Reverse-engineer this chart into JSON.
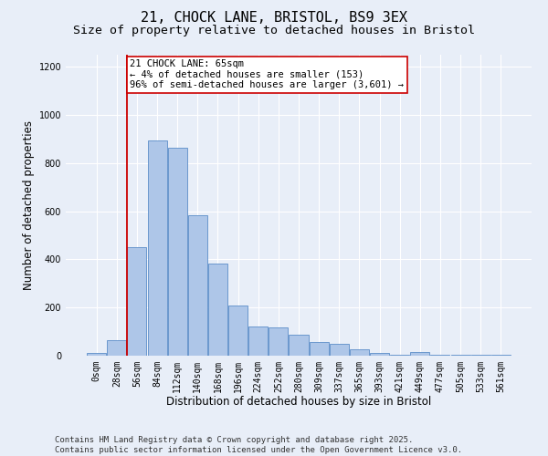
{
  "title_line1": "21, CHOCK LANE, BRISTOL, BS9 3EX",
  "title_line2": "Size of property relative to detached houses in Bristol",
  "xlabel": "Distribution of detached houses by size in Bristol",
  "ylabel": "Number of detached properties",
  "bin_labels": [
    "0sqm",
    "28sqm",
    "56sqm",
    "84sqm",
    "112sqm",
    "140sqm",
    "168sqm",
    "196sqm",
    "224sqm",
    "252sqm",
    "280sqm",
    "309sqm",
    "337sqm",
    "365sqm",
    "393sqm",
    "421sqm",
    "449sqm",
    "477sqm",
    "505sqm",
    "533sqm",
    "561sqm"
  ],
  "bar_values": [
    10,
    65,
    450,
    893,
    862,
    583,
    383,
    207,
    120,
    118,
    87,
    55,
    50,
    27,
    12,
    5,
    15,
    5,
    3,
    2,
    3
  ],
  "bar_color": "#aec6e8",
  "bar_edge_color": "#5b8dc8",
  "background_color": "#e8eef8",
  "grid_color": "#ffffff",
  "fig_background": "#e8eef8",
  "vline_index": 2,
  "vline_color": "#cc0000",
  "annotation_text": "21 CHOCK LANE: 65sqm\n← 4% of detached houses are smaller (153)\n96% of semi-detached houses are larger (3,601) →",
  "annotation_box_color": "#ffffff",
  "annotation_box_edge": "#cc0000",
  "ylim": [
    0,
    1250
  ],
  "yticks": [
    0,
    200,
    400,
    600,
    800,
    1000,
    1200
  ],
  "footer_text": "Contains HM Land Registry data © Crown copyright and database right 2025.\nContains public sector information licensed under the Open Government Licence v3.0.",
  "title_fontsize": 11,
  "subtitle_fontsize": 9.5,
  "axis_label_fontsize": 8.5,
  "tick_fontsize": 7,
  "footer_fontsize": 6.5,
  "annotation_fontsize": 7.5
}
